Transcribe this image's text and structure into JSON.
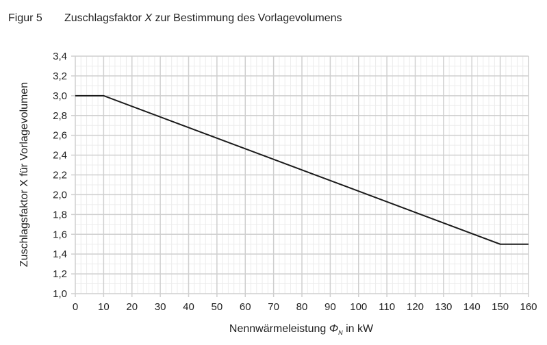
{
  "figure": {
    "label": "Figur 5",
    "title_pre": "Zuschlagsfaktor ",
    "title_var": "X",
    "title_post": " zur Bestimmung des Vorlagevolumens"
  },
  "chart_data": {
    "type": "line",
    "title": "Zuschlagsfaktor X zur Bestimmung des Vorlagevolumens",
    "xlabel": "Nennwärmeleistung ΦN in kW",
    "ylabel": "Zuschlagsfaktor X für Vorlagevolumen",
    "xlim": [
      0,
      160
    ],
    "ylim": [
      1.0,
      3.4
    ],
    "x_ticks": [
      "0",
      "10",
      "20",
      "30",
      "40",
      "50",
      "60",
      "70",
      "80",
      "90",
      "100",
      "110",
      "120",
      "130",
      "140",
      "150",
      "160"
    ],
    "y_ticks": [
      "1,0",
      "1,2",
      "1,4",
      "1,6",
      "1,8",
      "2,0",
      "2,2",
      "2,4",
      "2,6",
      "2,8",
      "3,0",
      "3,2",
      "3,4"
    ],
    "grid": true,
    "legend": null,
    "series": [
      {
        "name": "Zuschlagsfaktor X",
        "x": [
          0,
          10,
          150,
          160
        ],
        "y": [
          3.0,
          3.0,
          1.5,
          1.5
        ]
      }
    ]
  },
  "axis": {
    "ylabel": "Zuschlagsfaktor X für Vorlagevolumen",
    "xlabel_pre": "Nennwärmeleistung ",
    "xlabel_sym": "Φ",
    "xlabel_sub": "N",
    "xlabel_post": " in kW"
  },
  "colors": {
    "line": "#1a1a1a",
    "major_grid": "#cfcfcf",
    "minor_grid": "#ececec",
    "text": "#222222"
  }
}
